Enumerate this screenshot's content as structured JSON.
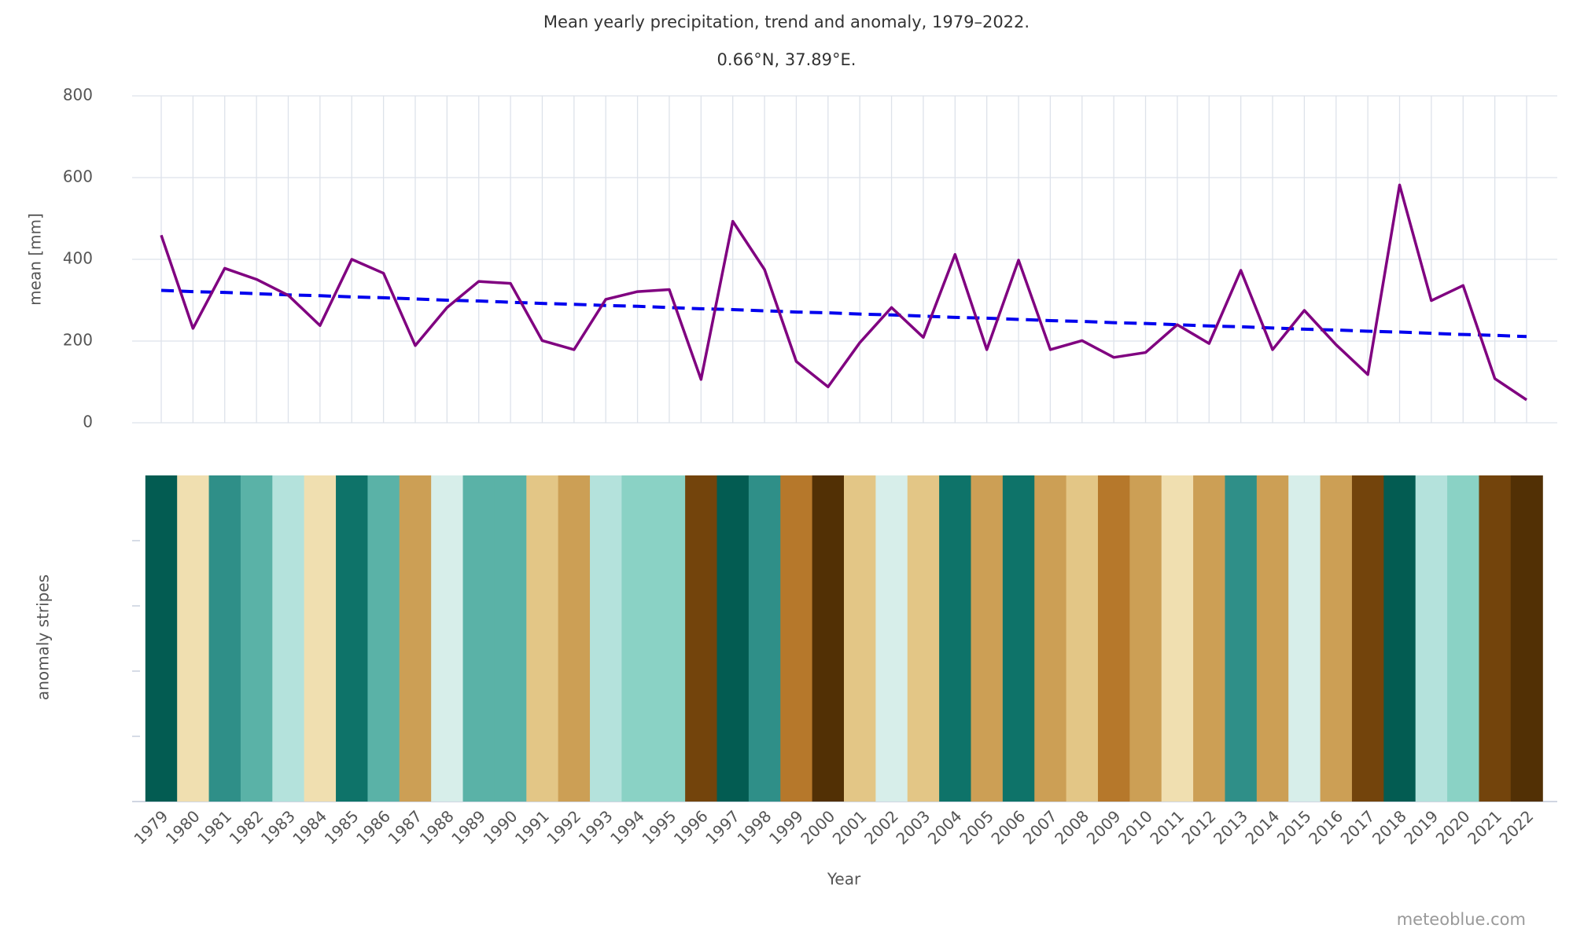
{
  "chart_data": {
    "type": "line",
    "title": "Mean yearly precipitation, trend and anomaly, 1979–2022.",
    "subtitle": "0.66°N, 37.89°E.",
    "ylabel": "mean [mm]",
    "stripes_label": "anomaly stripes",
    "xlabel": "Year",
    "credit": "meteoblue.com",
    "categories": [
      "1979",
      "1980",
      "1981",
      "1982",
      "1983",
      "1984",
      "1985",
      "1986",
      "1987",
      "1988",
      "1989",
      "1990",
      "1991",
      "1992",
      "1993",
      "1994",
      "1995",
      "1996",
      "1997",
      "1998",
      "1999",
      "2000",
      "2001",
      "2002",
      "2003",
      "2004",
      "2005",
      "2006",
      "2007",
      "2008",
      "2009",
      "2010",
      "2011",
      "2012",
      "2013",
      "2014",
      "2015",
      "2016",
      "2017",
      "2018",
      "2019",
      "2020",
      "2021",
      "2022"
    ],
    "series": [
      {
        "color": "#800080",
        "values": [
          459,
          231,
          378,
          351,
          312,
          238,
          400,
          366,
          189,
          282,
          346,
          341,
          201,
          179,
          302,
          321,
          326,
          106,
          493,
          375,
          150,
          88,
          196,
          282,
          209,
          412,
          179,
          398,
          179,
          201,
          160,
          172,
          240,
          194,
          373,
          179,
          275,
          191,
          118,
          582,
          299,
          336,
          108,
          56
        ]
      },
      {
        "color": "#0000ee",
        "dashed": true,
        "values": [
          324,
          321,
          319,
          316,
          313,
          311,
          308,
          306,
          303,
          300,
          298,
          295,
          292,
          290,
          287,
          285,
          282,
          279,
          277,
          274,
          271,
          269,
          266,
          264,
          261,
          258,
          256,
          253,
          250,
          248,
          245,
          243,
          240,
          237,
          235,
          232,
          229,
          227,
          224,
          222,
          219,
          216,
          214,
          211
        ]
      }
    ],
    "stripe_colors": [
      "#035c52",
      "#f0dfb0",
      "#2f8f88",
      "#5ab2a7",
      "#b4e2dc",
      "#f0dfb0",
      "#0e7369",
      "#5ab2a7",
      "#cc9f55",
      "#d7eeea",
      "#5ab2a7",
      "#5ab2a7",
      "#e3c686",
      "#cc9f55",
      "#b4e2dc",
      "#8ad2c5",
      "#8ad2c5",
      "#73440c",
      "#035c52",
      "#2f8f88",
      "#b6782b",
      "#523005",
      "#e3c686",
      "#d7eeea",
      "#e3c686",
      "#0e7369",
      "#cc9f55",
      "#0e7369",
      "#cc9f55",
      "#e3c686",
      "#b6782b",
      "#cc9f55",
      "#f0dfb0",
      "#cc9f55",
      "#2f8f88",
      "#cc9f55",
      "#d7eeea",
      "#cc9f55",
      "#73440c",
      "#035c52",
      "#b4e2dc",
      "#8ad2c5",
      "#73440c",
      "#523005"
    ],
    "ylim": [
      0,
      800
    ],
    "yticks": [
      0,
      200,
      400,
      600,
      800
    ],
    "grid": true
  }
}
